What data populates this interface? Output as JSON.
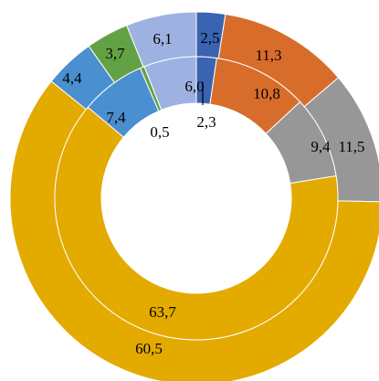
{
  "chart_data": {
    "type": "donut",
    "series": [
      {
        "ring": "outer",
        "values": [
          2.5,
          11.3,
          11.5,
          60.5,
          4.4,
          3.7,
          6.1
        ],
        "labels": [
          "2,5",
          "11,3",
          "11,5",
          "60,5",
          "4,4",
          "3,7",
          "6,1"
        ]
      },
      {
        "ring": "inner",
        "values": [
          2.3,
          10.8,
          9.4,
          63.7,
          7.4,
          0.5,
          6.0
        ],
        "labels": [
          "2,3",
          "10,8",
          "9,4",
          "63,7",
          "7,4",
          "0,5",
          "6,0"
        ]
      }
    ],
    "colors": [
      "#3a64b2",
      "#d86d2b",
      "#979797",
      "#e3aa00",
      "#4a8fd0",
      "#63a244",
      "#9db2e0"
    ],
    "title": "",
    "legend": "none"
  }
}
